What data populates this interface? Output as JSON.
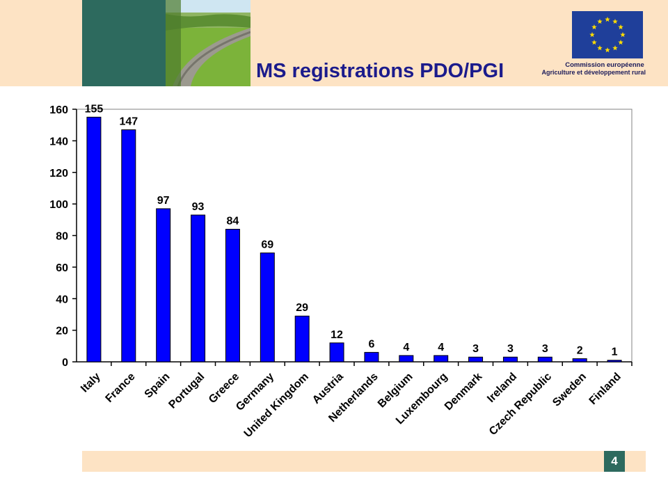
{
  "slide": {
    "title": "MS registrations PDO/PGI",
    "page_number": "4",
    "logo_line1": "Commission européenne",
    "logo_line2": "Agriculture et développement rural"
  },
  "colors": {
    "header_band": "#fde3c4",
    "teal": "#2d6a5e",
    "title": "#1b1b8c",
    "bar": "#0000ff",
    "eu_blue": "#1f3f9a",
    "eu_star": "#ffdd00"
  },
  "icons": {
    "logo": "eu-flag-icon"
  },
  "chart_data": {
    "type": "bar",
    "title": "",
    "xlabel": "",
    "ylabel": "",
    "categories": [
      "Italy",
      "France",
      "Spain",
      "Portugal",
      "Greece",
      "Germany",
      "United Kingdom",
      "Austria",
      "Netherlands",
      "Belgium",
      "Luxembourg",
      "Denmark",
      "Ireland",
      "Czech Republic",
      "Sweden",
      "Finland"
    ],
    "values": [
      155,
      147,
      97,
      93,
      84,
      69,
      29,
      12,
      6,
      4,
      4,
      3,
      3,
      3,
      2,
      1
    ],
    "ylim": [
      0,
      160
    ],
    "yticks": [
      0,
      20,
      40,
      60,
      80,
      100,
      120,
      140,
      160
    ],
    "grid": false,
    "legend": "none",
    "data_labels": true
  }
}
